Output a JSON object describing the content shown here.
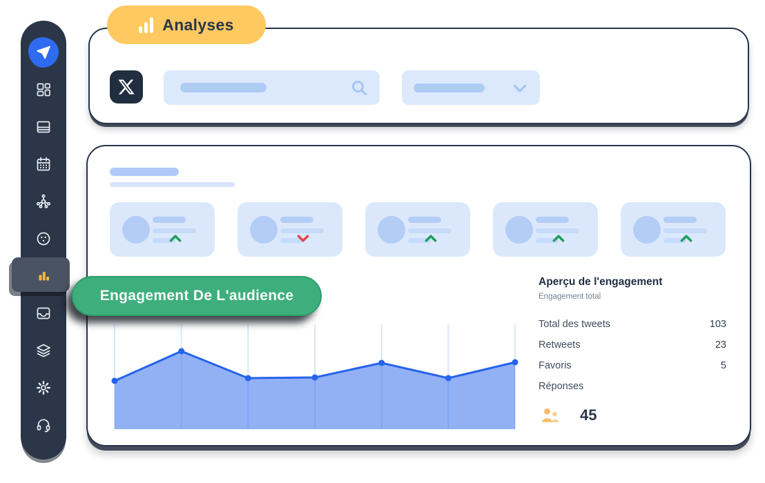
{
  "badge": {
    "label": "Analyses"
  },
  "sidebar": {
    "logo": "send-paper-plane",
    "items": [
      "dashboard",
      "feed",
      "calendar",
      "network",
      "cookie",
      "analytics",
      "inbox",
      "layers",
      "settings",
      "support"
    ],
    "active_item": "analytics"
  },
  "topbar": {
    "brand": "x-twitter-logo",
    "search": {
      "placeholder": "",
      "value": ""
    },
    "filter_dropdown": {
      "selected": ""
    }
  },
  "overlay": {
    "engagement_pill_label": "Engagement De L'audience"
  },
  "stat_cards": [
    {
      "trend": "up"
    },
    {
      "trend": "down"
    },
    {
      "trend": "up"
    },
    {
      "trend": "up"
    },
    {
      "trend": "up"
    }
  ],
  "panel": {
    "title": "Aperçu de l'engagement",
    "subtitle": "Engagement total",
    "rows": [
      {
        "label": "Total des tweets",
        "value": "103"
      },
      {
        "label": "Retweets",
        "value": "23"
      },
      {
        "label": "Favoris",
        "value": "5"
      },
      {
        "label": "Réponses",
        "value": ""
      }
    ],
    "audience_icon": "users-icon",
    "audience_count": "45"
  },
  "chart_data": {
    "type": "area",
    "x": [
      1,
      2,
      3,
      4,
      5,
      6,
      7
    ],
    "values": [
      70,
      113,
      74,
      75,
      96,
      74,
      97
    ],
    "note": "no axis tick labels or data labels visible; values are relative heights estimated from pixels",
    "title": "",
    "xlabel": "",
    "ylabel": "",
    "ylim": [
      0,
      152
    ],
    "grid": "vertical-gridline-per-point",
    "legend": "none",
    "line_color": "#2563EB",
    "fill_color": "rgba(37,99,235,0.5)",
    "grid_color": "#D9E6FB"
  },
  "colors": {
    "sidebar_bg": "#2B3648",
    "sidebar_active_bg": "#4A5363",
    "accent_yellow": "#FFC961",
    "accent_green_pill": "#3EAE7D",
    "logo_blue": "#2E6BF0",
    "skeleton_blue_light": "#DCE9FC",
    "skeleton_blue_mid": "#AECBF4",
    "trend_up": "#1F9E5F",
    "trend_down": "#E14850",
    "orange_icon": "#F2B544",
    "card_border": "#26334A"
  }
}
